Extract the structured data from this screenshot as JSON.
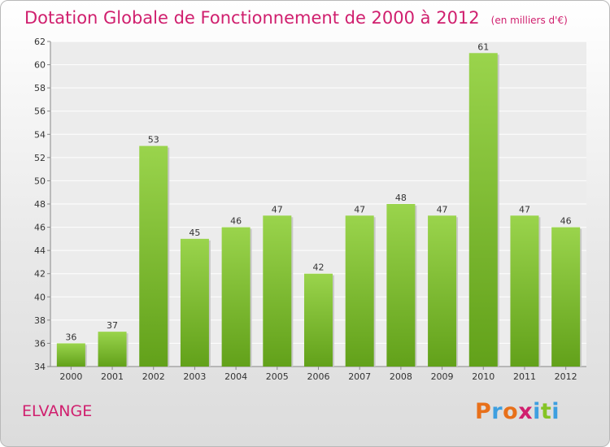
{
  "header": {
    "title": "Dotation Globale de Fonctionnement de 2000 à 2012",
    "unit": "(en milliers d'€)"
  },
  "footer": {
    "city": "ELVANGE",
    "brand": "Proxiti",
    "brand_colors": [
      "#e8701a",
      "#3d9fe0",
      "#e8701a",
      "#d01f6e",
      "#3d9fe0",
      "#85c425",
      "#3d9fe0"
    ]
  },
  "colors": {
    "accent": "#d01f6e",
    "bar_top": "#9ad44c",
    "bar_bottom": "#62a11a"
  },
  "chart_data": {
    "type": "bar",
    "title": "Dotation Globale de Fonctionnement de 2000 à 2012",
    "subtitle": "(en milliers d'€)",
    "categories": [
      "2000",
      "2001",
      "2002",
      "2003",
      "2004",
      "2005",
      "2006",
      "2007",
      "2008",
      "2009",
      "2010",
      "2011",
      "2012"
    ],
    "values": [
      36,
      37,
      53,
      45,
      46,
      47,
      42,
      47,
      48,
      47,
      61,
      47,
      46
    ],
    "ylim": [
      34,
      62
    ],
    "yticks": [
      34,
      36,
      38,
      40,
      42,
      44,
      46,
      48,
      50,
      52,
      54,
      56,
      58,
      60,
      62
    ],
    "grid": true,
    "legend": "none"
  }
}
